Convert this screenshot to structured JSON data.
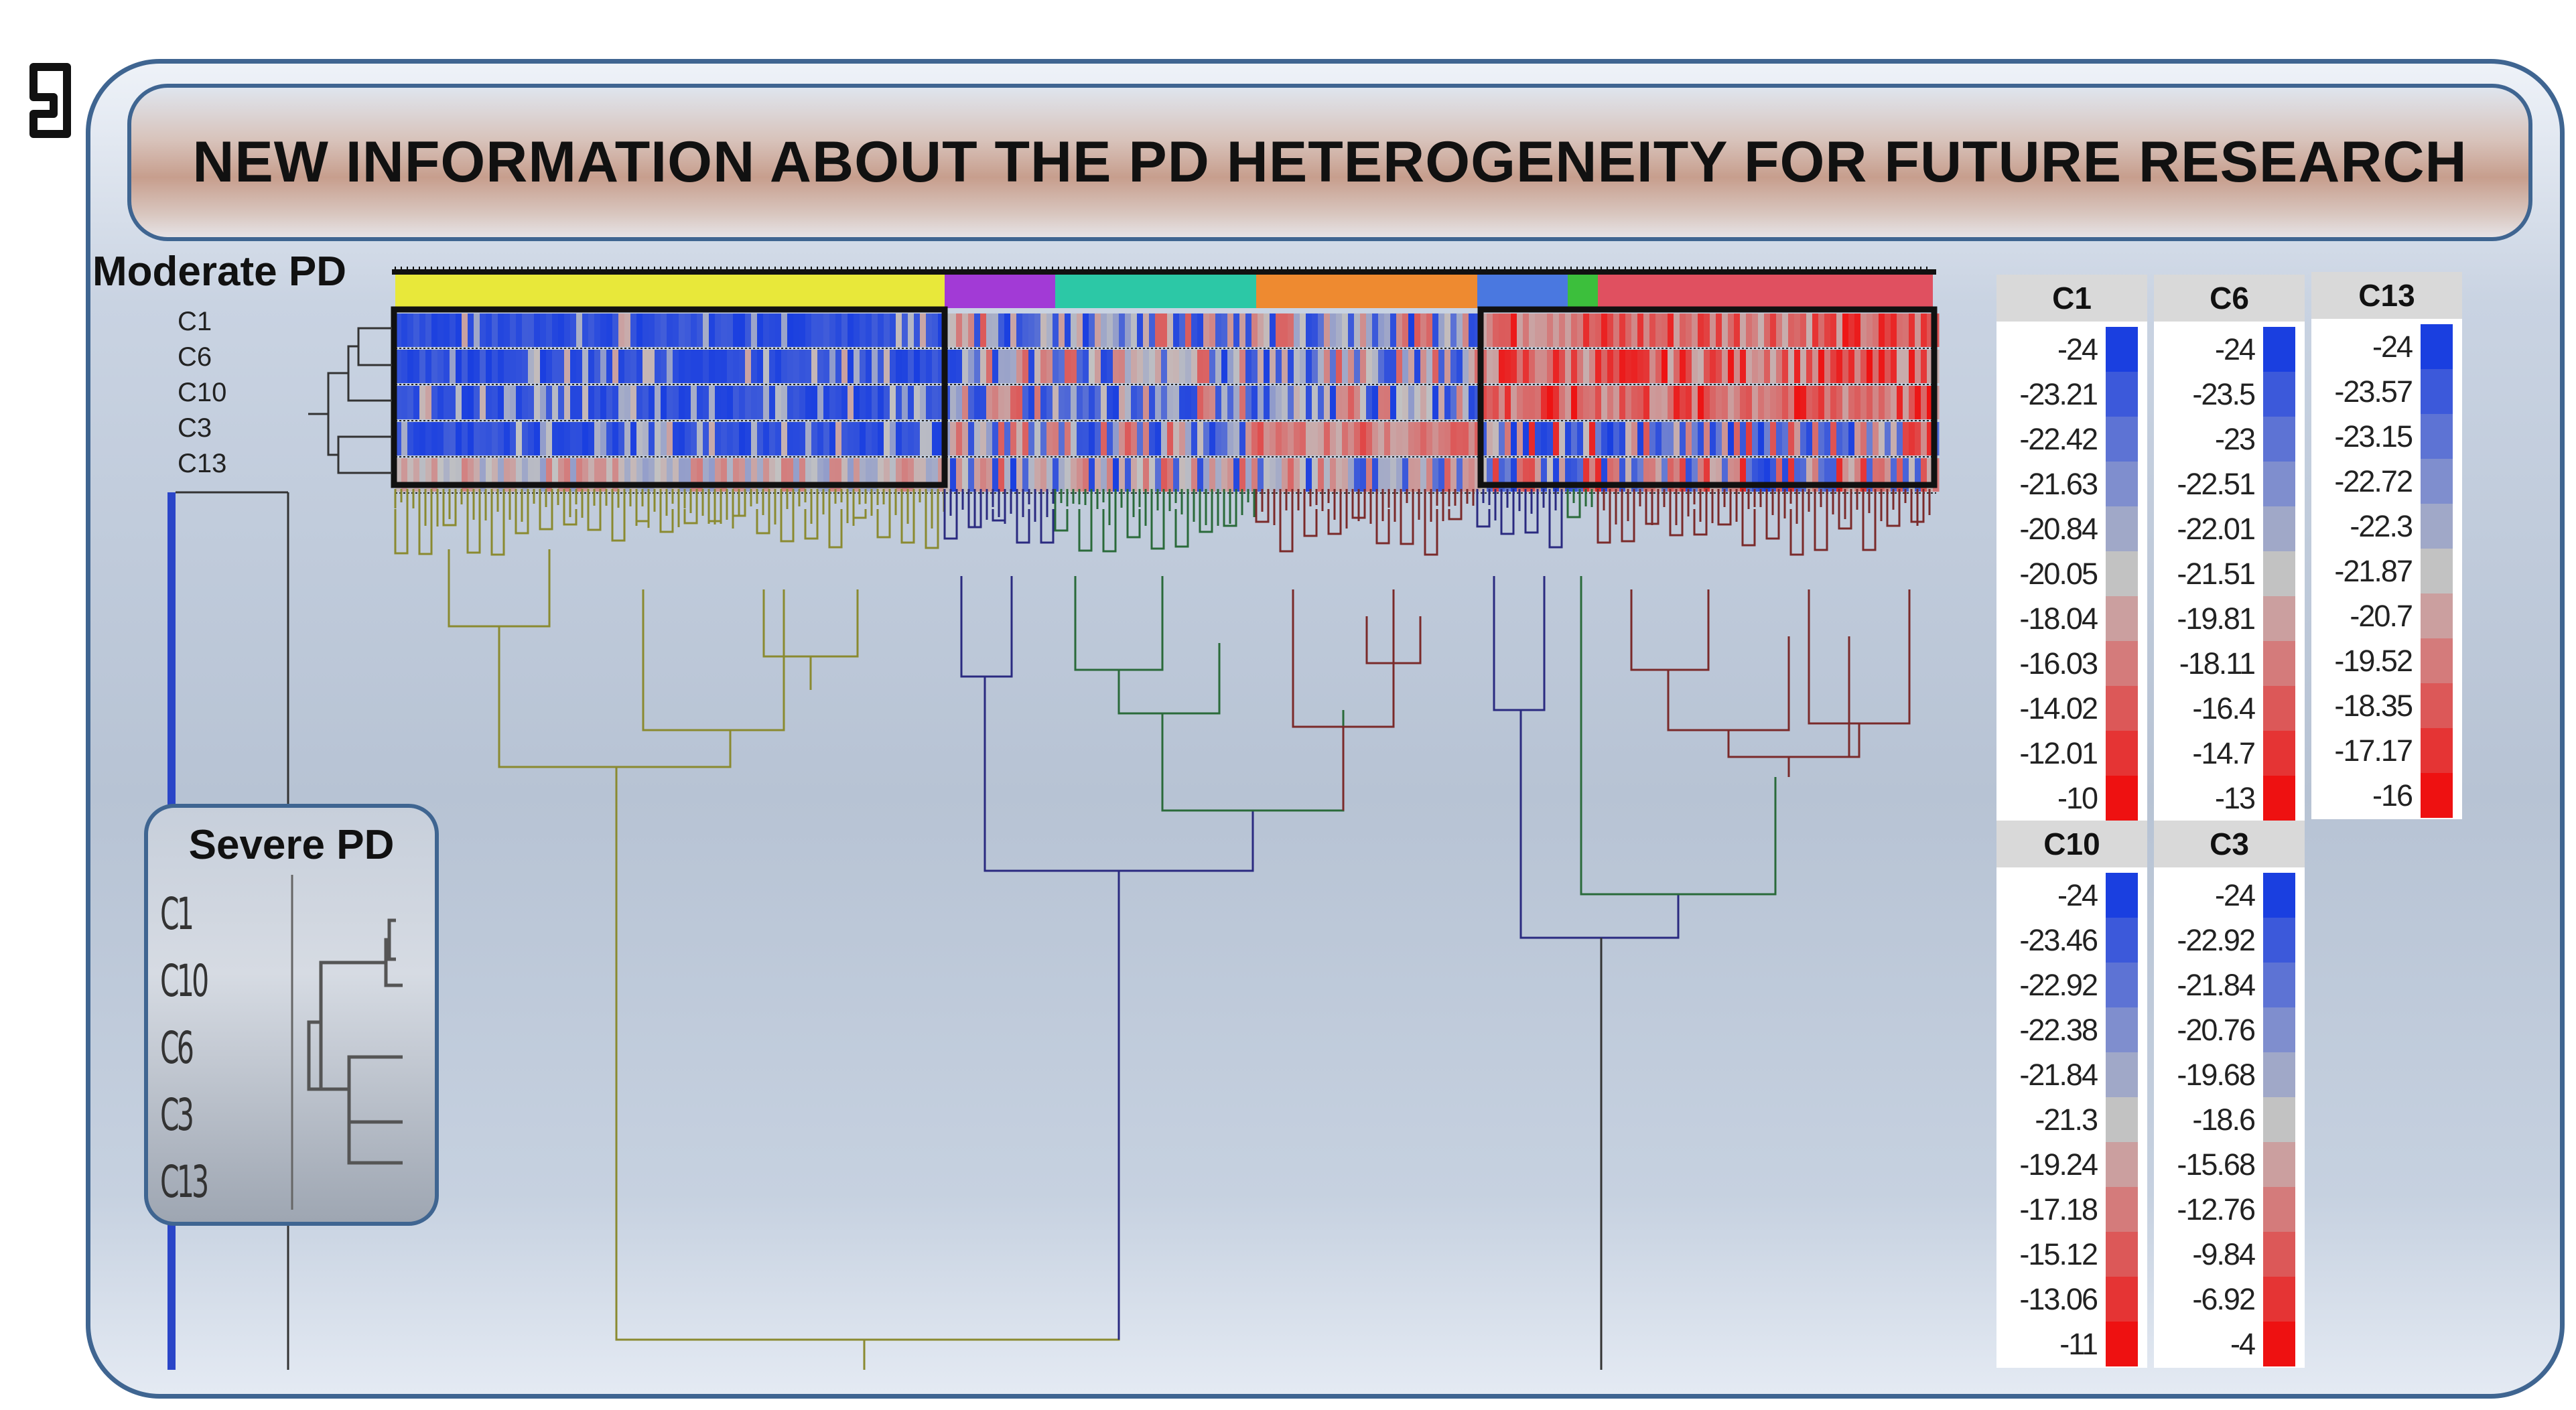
{
  "title": "NEW INFORMATION ABOUT THE PD HETEROGENEITY FOR FUTURE RESEARCH",
  "moderate_label": "Moderate PD",
  "moderate_rows": [
    "C1",
    "C6",
    "C10",
    "C3",
    "C13"
  ],
  "severe_label": "Severe PD",
  "severe_rows": [
    "C1",
    "C10",
    "C6",
    "C3",
    "C13"
  ],
  "colors": {
    "frame": "#3f6591",
    "low": "#1a3fe0",
    "mid": "#c2c2c2",
    "high": "#ee1111",
    "cluster_yellow": "#e8e83a",
    "cluster_purple": "#a23ad6",
    "cluster_teal": "#2cc8a6",
    "cluster_orange": "#ee8a30",
    "cluster_blue": "#4a78e0",
    "cluster_green": "#3cbf3c",
    "cluster_red": "#e05060"
  },
  "logo_icon": "bracket-logo-icon",
  "legends": [
    {
      "name": "C1",
      "values": [
        "-24",
        "-23.21",
        "-22.42",
        "-21.63",
        "-20.84",
        "-20.05",
        "-18.04",
        "-16.03",
        "-14.02",
        "-12.01",
        "-10"
      ]
    },
    {
      "name": "C6",
      "values": [
        "-24",
        "-23.5",
        "-23",
        "-22.51",
        "-22.01",
        "-21.51",
        "-19.81",
        "-18.11",
        "-16.4",
        "-14.7",
        "-13"
      ]
    },
    {
      "name": "C13",
      "values": [
        "-24",
        "-23.57",
        "-23.15",
        "-22.72",
        "-22.3",
        "-21.87",
        "-20.7",
        "-19.52",
        "-18.35",
        "-17.17",
        "-16"
      ]
    },
    {
      "name": "C10",
      "values": [
        "-24",
        "-23.46",
        "-22.92",
        "-22.38",
        "-21.84",
        "-21.3",
        "-19.24",
        "-17.18",
        "-15.12",
        "-13.06",
        "-11"
      ]
    },
    {
      "name": "C3",
      "values": [
        "-24",
        "-22.92",
        "-21.84",
        "-20.76",
        "-19.68",
        "-18.6",
        "-15.68",
        "-12.76",
        "-9.84",
        "-6.92",
        "-4"
      ]
    }
  ]
}
